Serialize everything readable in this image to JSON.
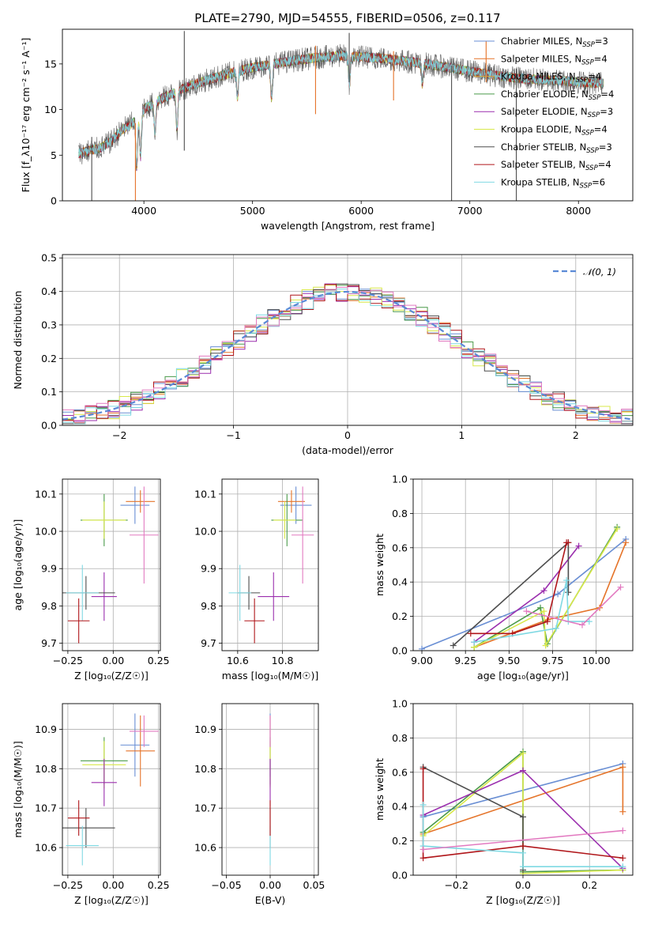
{
  "figure": {
    "title": "PLATE=2790, MJD=54555, FIBERID=0506, z=0.117"
  },
  "chart_data": [
    {
      "id": "spectrum",
      "type": "line",
      "xlabel": "wavelength [Angstrom, rest frame]",
      "ylabel": "Flux [f_λ10⁻¹⁷ erg cm⁻² s⁻¹ A⁻¹]",
      "xlim": [
        3250,
        8500
      ],
      "ylim": [
        0,
        18.8
      ],
      "xticks": [
        4000,
        5000,
        6000,
        7000,
        8000
      ],
      "yticks": [
        0,
        5,
        10,
        15
      ],
      "grid": false,
      "legend_position": "top-right",
      "data_range": [
        3400,
        8230
      ],
      "continuum": {
        "x": [
          3400,
          3600,
          3700,
          3800,
          3900,
          4000,
          4100,
          4200,
          4400,
          4600,
          4800,
          5000,
          5200,
          5400,
          5600,
          5800,
          6000,
          6200,
          6400,
          6600,
          6800,
          7000,
          7200,
          7400,
          7600,
          7800,
          8000,
          8230
        ],
        "y": [
          5.2,
          5.8,
          6.5,
          7.8,
          8.6,
          10.0,
          10.8,
          11.4,
          12.5,
          13.3,
          14.0,
          14.6,
          15.0,
          15.4,
          15.7,
          15.9,
          15.8,
          15.6,
          15.3,
          15.0,
          14.6,
          14.2,
          13.8,
          13.5,
          13.3,
          13.2,
          13.0,
          12.9
        ]
      },
      "absorption_features": [
        {
          "x": 3934,
          "depth": 0.6
        },
        {
          "x": 3969,
          "depth": 0.5
        },
        {
          "x": 4102,
          "depth": 0.3
        },
        {
          "x": 4305,
          "depth": 0.35
        },
        {
          "x": 4861,
          "depth": 0.2
        },
        {
          "x": 5175,
          "depth": 0.25
        },
        {
          "x": 5892,
          "depth": 0.2
        },
        {
          "x": 6563,
          "depth": 0.15
        }
      ],
      "spikes": [
        {
          "x": 3520,
          "min": 0.0,
          "max": 7.0
        },
        {
          "x": 3922,
          "min": 0.0,
          "max": 8.5
        },
        {
          "x": 4372,
          "min": 5.5,
          "max": 18.6
        },
        {
          "x": 5580,
          "min": 9.5,
          "max": 17.0
        },
        {
          "x": 5890,
          "min": 13.0,
          "max": 18.4
        },
        {
          "x": 6298,
          "min": 11.0,
          "max": 16.4
        },
        {
          "x": 6832,
          "min": 0.0,
          "max": 14.8
        },
        {
          "x": 7150,
          "min": 13.0,
          "max": 17.5
        },
        {
          "x": 7428,
          "min": 0.0,
          "max": 14.5
        }
      ],
      "series": [
        {
          "name": "Chabrier MILES, N_SSP=3",
          "label_main": "Chabrier MILES, N",
          "label_sub": "SSP",
          "label_tail": "=3",
          "color": "#6a8fd4"
        },
        {
          "name": "Salpeter MILES, N_SSP=4",
          "label_main": "Salpeter MILES, N",
          "label_sub": "SSP",
          "label_tail": "=4",
          "color": "#e5742a"
        },
        {
          "name": "Kroupa MILES, N_SSP=4",
          "label_main": "Kroupa MILES, N",
          "label_sub": "SSP",
          "label_tail": "=4",
          "color": "#d8a238"
        },
        {
          "name": "Chabrier ELODIE, N_SSP=4",
          "label_main": "Chabrier ELODIE, N",
          "label_sub": "SSP",
          "label_tail": "=4",
          "color": "#4a9a4a"
        },
        {
          "name": "Salpeter ELODIE, N_SSP=3",
          "label_main": "Salpeter ELODIE, N",
          "label_sub": "SSP",
          "label_tail": "=3",
          "color": "#9b2fae"
        },
        {
          "name": "Kroupa ELODIE, N_SSP=4",
          "label_main": "Kroupa ELODIE, N",
          "label_sub": "SSP",
          "label_tail": "=4",
          "color": "#d8e84a"
        },
        {
          "name": "Chabrier STELIB, N_SSP=3",
          "label_main": "Chabrier STELIB, N",
          "label_sub": "SSP",
          "label_tail": "=3",
          "color": "#4d4d4d"
        },
        {
          "name": "Salpeter STELIB, N_SSP=4",
          "label_main": "Salpeter STELIB, N",
          "label_sub": "SSP",
          "label_tail": "=4",
          "color": "#b0161a"
        },
        {
          "name": "Kroupa STELIB, N_SSP=6",
          "label_main": "Kroupa STELIB, N",
          "label_sub": "SSP",
          "label_tail": "=6",
          "color": "#7fd9e3"
        }
      ]
    },
    {
      "id": "residuals",
      "type": "line",
      "xlabel": "(data-model)/error",
      "ylabel": "Normed distribution",
      "xlim": [
        -2.5,
        2.5
      ],
      "ylim": [
        0,
        0.51
      ],
      "xticks": [
        -2,
        -1,
        0,
        1,
        2
      ],
      "yticks": [
        0.0,
        0.1,
        0.2,
        0.3,
        0.4,
        0.5
      ],
      "ytick_labels": [
        "0.0",
        "0.1",
        "0.2",
        "0.3",
        "0.4",
        "0.5"
      ],
      "xtick_labels": [
        "−2",
        "−1",
        "0",
        "1",
        "2"
      ],
      "grid": true,
      "legend_position": "top-right",
      "gaussian": {
        "label": "𝒩(0, 1)",
        "color": "#5b8ad6",
        "style": "dashed"
      },
      "histogram": {
        "bin_width": 0.1,
        "x_start": -2.5,
        "x_end": 2.5,
        "colors": [
          "#6a8fd4",
          "#e5742a",
          "#4a9a4a",
          "#9b2fae",
          "#d8e84a",
          "#4d4d4d",
          "#b0161a",
          "#7fd9e3",
          "#e27ac0"
        ]
      }
    },
    {
      "id": "age_vs_Z",
      "type": "scatter",
      "xlabel": "Z [log₁₀(Z/Z☉)]",
      "ylabel": "age  [log₁₀(age/yr)]",
      "xlim": [
        -0.28,
        0.26
      ],
      "ylim": [
        9.68,
        10.14
      ],
      "xticks": [
        -0.25,
        0.0,
        0.25
      ],
      "xtick_labels": [
        "−0.25",
        "0.00",
        "0.25"
      ],
      "yticks": [
        9.7,
        9.8,
        9.9,
        10.0,
        10.1
      ],
      "ytick_labels": [
        "9.7",
        "9.8",
        "9.9",
        "10.0",
        "10.1"
      ],
      "grid": true,
      "points": [
        {
          "x": 0.12,
          "y": 10.07,
          "xerr": 0.08,
          "yerr": 0.05,
          "color": "#6a8fd4"
        },
        {
          "x": 0.15,
          "y": 10.08,
          "xerr": 0.08,
          "yerr": 0.03,
          "color": "#e5742a"
        },
        {
          "x": -0.05,
          "y": 10.03,
          "xerr": 0.13,
          "yerr": 0.07,
          "color": "#4a9a4a"
        },
        {
          "x": -0.05,
          "y": 10.03,
          "xerr": 0.12,
          "yerr": 0.05,
          "color": "#d8e84a"
        },
        {
          "x": 0.17,
          "y": 9.99,
          "xerr": 0.08,
          "yerr": 0.13,
          "color": "#e27ac0"
        },
        {
          "x": -0.05,
          "y": 9.825,
          "xerr": 0.07,
          "yerr": 0.065,
          "color": "#9b2fae"
        },
        {
          "x": -0.15,
          "y": 9.835,
          "xerr": 0.16,
          "yerr": 0.045,
          "color": "#4d4d4d"
        },
        {
          "x": -0.17,
          "y": 9.835,
          "xerr": 0.09,
          "yerr": 0.075,
          "color": "#7fd9e3"
        },
        {
          "x": -0.19,
          "y": 9.76,
          "xerr": 0.06,
          "yerr": 0.06,
          "color": "#b0161a"
        }
      ]
    },
    {
      "id": "age_vs_mass",
      "type": "scatter",
      "xlabel": "mass [log₁₀(M/M☉)]",
      "ylabel": "",
      "xlim": [
        10.53,
        10.96
      ],
      "ylim": [
        9.68,
        10.14
      ],
      "xticks": [
        10.6,
        10.8
      ],
      "xtick_labels": [
        "10.6",
        "10.8"
      ],
      "yticks": [
        9.7,
        9.8,
        9.9,
        10.0,
        10.1
      ],
      "ytick_labels": [
        "9.7",
        "9.8",
        "9.9",
        "10.0",
        "10.1"
      ],
      "grid": true,
      "points": [
        {
          "x": 10.86,
          "y": 10.07,
          "xerr": 0.07,
          "yerr": 0.05,
          "color": "#6a8fd4"
        },
        {
          "x": 10.84,
          "y": 10.08,
          "xerr": 0.06,
          "yerr": 0.03,
          "color": "#e5742a"
        },
        {
          "x": 10.82,
          "y": 10.03,
          "xerr": 0.07,
          "yerr": 0.07,
          "color": "#4a9a4a"
        },
        {
          "x": 10.81,
          "y": 10.03,
          "xerr": 0.05,
          "yerr": 0.05,
          "color": "#d8e84a"
        },
        {
          "x": 10.89,
          "y": 9.99,
          "xerr": 0.05,
          "yerr": 0.13,
          "color": "#e27ac0"
        },
        {
          "x": 10.76,
          "y": 9.825,
          "xerr": 0.07,
          "yerr": 0.065,
          "color": "#9b2fae"
        },
        {
          "x": 10.65,
          "y": 9.835,
          "xerr": 0.05,
          "yerr": 0.045,
          "color": "#4d4d4d"
        },
        {
          "x": 10.61,
          "y": 9.835,
          "xerr": 0.05,
          "yerr": 0.075,
          "color": "#7fd9e3"
        },
        {
          "x": 10.675,
          "y": 9.76,
          "xerr": 0.045,
          "yerr": 0.06,
          "color": "#b0161a"
        }
      ]
    },
    {
      "id": "mass_weight_vs_age",
      "type": "line",
      "xlabel": "age  [log₁₀(age/yr)]",
      "ylabel": "mass weight",
      "xlim": [
        8.95,
        10.21
      ],
      "ylim": [
        0,
        1
      ],
      "xticks": [
        9.0,
        9.25,
        9.5,
        9.75,
        10.0
      ],
      "xtick_labels": [
        "9.00",
        "9.25",
        "9.50",
        "9.75",
        "10.00"
      ],
      "yticks": [
        0.0,
        0.2,
        0.4,
        0.6,
        0.8,
        1.0
      ],
      "ytick_labels": [
        "0.0",
        "0.2",
        "0.4",
        "0.6",
        "0.8",
        "1.0"
      ],
      "grid": true,
      "series": [
        {
          "color": "#6a8fd4",
          "x": [
            9.0,
            9.78,
            10.17
          ],
          "y": [
            0.01,
            0.33,
            0.65
          ]
        },
        {
          "color": "#e5742a",
          "x": [
            9.3,
            9.72,
            10.02,
            10.17
          ],
          "y": [
            0.02,
            0.18,
            0.25,
            0.63
          ]
        },
        {
          "color": "#4a9a4a",
          "x": [
            9.3,
            9.68,
            9.72,
            10.12
          ],
          "y": [
            0.02,
            0.25,
            0.04,
            0.72
          ]
        },
        {
          "color": "#d8e84a",
          "x": [
            9.3,
            9.7,
            9.71,
            10.12
          ],
          "y": [
            0.02,
            0.23,
            0.03,
            0.71
          ]
        },
        {
          "color": "#9b2fae",
          "x": [
            9.3,
            9.7,
            9.9
          ],
          "y": [
            0.05,
            0.35,
            0.61
          ]
        },
        {
          "color": "#4d4d4d",
          "x": [
            9.18,
            9.84,
            9.84
          ],
          "y": [
            0.03,
            0.63,
            0.34
          ]
        },
        {
          "color": "#b0161a",
          "x": [
            9.28,
            9.52,
            9.72,
            9.83,
            9.84
          ],
          "y": [
            0.1,
            0.1,
            0.17,
            0.63,
            0.63
          ]
        },
        {
          "color": "#7fd9e3",
          "x": [
            9.3,
            9.77,
            9.83,
            9.84,
            9.96
          ],
          "y": [
            0.05,
            0.13,
            0.41,
            0.17,
            0.17
          ]
        },
        {
          "color": "#e27ac0",
          "x": [
            9.6,
            9.92,
            10.14
          ],
          "y": [
            0.23,
            0.15,
            0.37
          ]
        }
      ]
    },
    {
      "id": "mass_vs_Z",
      "type": "scatter",
      "xlabel": "Z [log₁₀(Z/Z☉)]",
      "ylabel": "mass [log₁₀(M/M☉)]",
      "xlim": [
        -0.28,
        0.26
      ],
      "ylim": [
        10.53,
        10.965
      ],
      "xticks": [
        -0.25,
        0.0,
        0.25
      ],
      "xtick_labels": [
        "−0.25",
        "0.00",
        "0.25"
      ],
      "yticks": [
        10.6,
        10.7,
        10.8,
        10.9
      ],
      "ytick_labels": [
        "10.6",
        "10.7",
        "10.8",
        "10.9"
      ],
      "grid": true,
      "points": [
        {
          "x": 0.12,
          "y": 10.86,
          "xerr": 0.08,
          "yerr": 0.08,
          "color": "#6a8fd4"
        },
        {
          "x": 0.15,
          "y": 10.845,
          "xerr": 0.08,
          "yerr": 0.09,
          "color": "#e5742a"
        },
        {
          "x": -0.05,
          "y": 10.82,
          "xerr": 0.13,
          "yerr": 0.06,
          "color": "#4a9a4a"
        },
        {
          "x": -0.05,
          "y": 10.81,
          "xerr": 0.12,
          "yerr": 0.06,
          "color": "#d8e84a"
        },
        {
          "x": 0.17,
          "y": 10.895,
          "xerr": 0.08,
          "yerr": 0.04,
          "color": "#e27ac0"
        },
        {
          "x": -0.05,
          "y": 10.765,
          "xerr": 0.07,
          "yerr": 0.06,
          "color": "#9b2fae"
        },
        {
          "x": -0.15,
          "y": 10.65,
          "xerr": 0.16,
          "yerr": 0.05,
          "color": "#4d4d4d"
        },
        {
          "x": -0.17,
          "y": 10.605,
          "xerr": 0.09,
          "yerr": 0.05,
          "color": "#7fd9e3"
        },
        {
          "x": -0.19,
          "y": 10.675,
          "xerr": 0.06,
          "yerr": 0.045,
          "color": "#b0161a"
        }
      ]
    },
    {
      "id": "mass_vs_ebv",
      "type": "scatter",
      "xlabel": "E(B-V)",
      "ylabel": "",
      "xlim": [
        -0.055,
        0.055
      ],
      "ylim": [
        10.53,
        10.965
      ],
      "xticks": [
        -0.05,
        0.0,
        0.05
      ],
      "xtick_labels": [
        "−0.05",
        "0.00",
        "0.05"
      ],
      "yticks": [
        10.6,
        10.7,
        10.8,
        10.9
      ],
      "ytick_labels": [
        "10.6",
        "10.7",
        "10.8",
        "10.9"
      ],
      "grid": true,
      "points": [
        {
          "x": 0.0,
          "y": 10.86,
          "yerr": 0.08,
          "color": "#6a8fd4"
        },
        {
          "x": 0.0,
          "y": 10.845,
          "yerr": 0.09,
          "color": "#e5742a"
        },
        {
          "x": 0.0,
          "y": 10.82,
          "yerr": 0.06,
          "color": "#4a9a4a"
        },
        {
          "x": 0.0,
          "y": 10.81,
          "yerr": 0.06,
          "color": "#d8e84a"
        },
        {
          "x": 0.0,
          "y": 10.895,
          "yerr": 0.04,
          "color": "#e27ac0"
        },
        {
          "x": 0.0,
          "y": 10.765,
          "yerr": 0.06,
          "color": "#9b2fae"
        },
        {
          "x": 0.0,
          "y": 10.65,
          "yerr": 0.05,
          "color": "#4d4d4d"
        },
        {
          "x": 0.0,
          "y": 10.605,
          "yerr": 0.05,
          "color": "#7fd9e3"
        },
        {
          "x": 0.0,
          "y": 10.675,
          "yerr": 0.045,
          "color": "#b0161a"
        }
      ]
    },
    {
      "id": "mass_weight_vs_Z",
      "type": "line",
      "xlabel": "Z [log₁₀(Z/Z☉)]",
      "ylabel": "mass weight",
      "xlim": [
        -0.33,
        0.33
      ],
      "ylim": [
        0,
        1
      ],
      "xticks": [
        -0.2,
        0.0,
        0.2
      ],
      "xtick_labels": [
        "−0.2",
        "0.0",
        "0.2"
      ],
      "yticks": [
        0.0,
        0.2,
        0.4,
        0.6,
        0.8,
        1.0
      ],
      "ytick_labels": [
        "0.0",
        "0.2",
        "0.4",
        "0.6",
        "0.8",
        "1.0"
      ],
      "grid": true,
      "series": [
        {
          "color": "#6a8fd4",
          "x": [
            -0.3,
            0.3
          ],
          "y": [
            0.34,
            0.65
          ]
        },
        {
          "color": "#e5742a",
          "x": [
            -0.3,
            0.3,
            0.3
          ],
          "y": [
            0.24,
            0.63,
            0.37
          ]
        },
        {
          "color": "#4a9a4a",
          "x": [
            -0.3,
            0.0,
            0.0,
            0.3
          ],
          "y": [
            0.25,
            0.72,
            0.02,
            0.03
          ]
        },
        {
          "color": "#d8e84a",
          "x": [
            -0.3,
            0.0,
            0.0,
            0.3
          ],
          "y": [
            0.23,
            0.71,
            0.01,
            0.03
          ]
        },
        {
          "color": "#9b2fae",
          "x": [
            -0.3,
            0.0,
            0.3
          ],
          "y": [
            0.35,
            0.61,
            0.04
          ]
        },
        {
          "color": "#4d4d4d",
          "x": [
            -0.3,
            0.0,
            0.0
          ],
          "y": [
            0.63,
            0.34,
            0.03
          ]
        },
        {
          "color": "#b0161a",
          "x": [
            -0.3,
            -0.3,
            0.0,
            0.3
          ],
          "y": [
            0.62,
            0.1,
            0.17,
            0.1
          ]
        },
        {
          "color": "#7fd9e3",
          "x": [
            -0.3,
            -0.3,
            0.0,
            0.0,
            0.3
          ],
          "y": [
            0.41,
            0.17,
            0.13,
            0.05,
            0.05
          ]
        },
        {
          "color": "#e27ac0",
          "x": [
            -0.3,
            0.3
          ],
          "y": [
            0.15,
            0.26
          ]
        }
      ]
    }
  ]
}
